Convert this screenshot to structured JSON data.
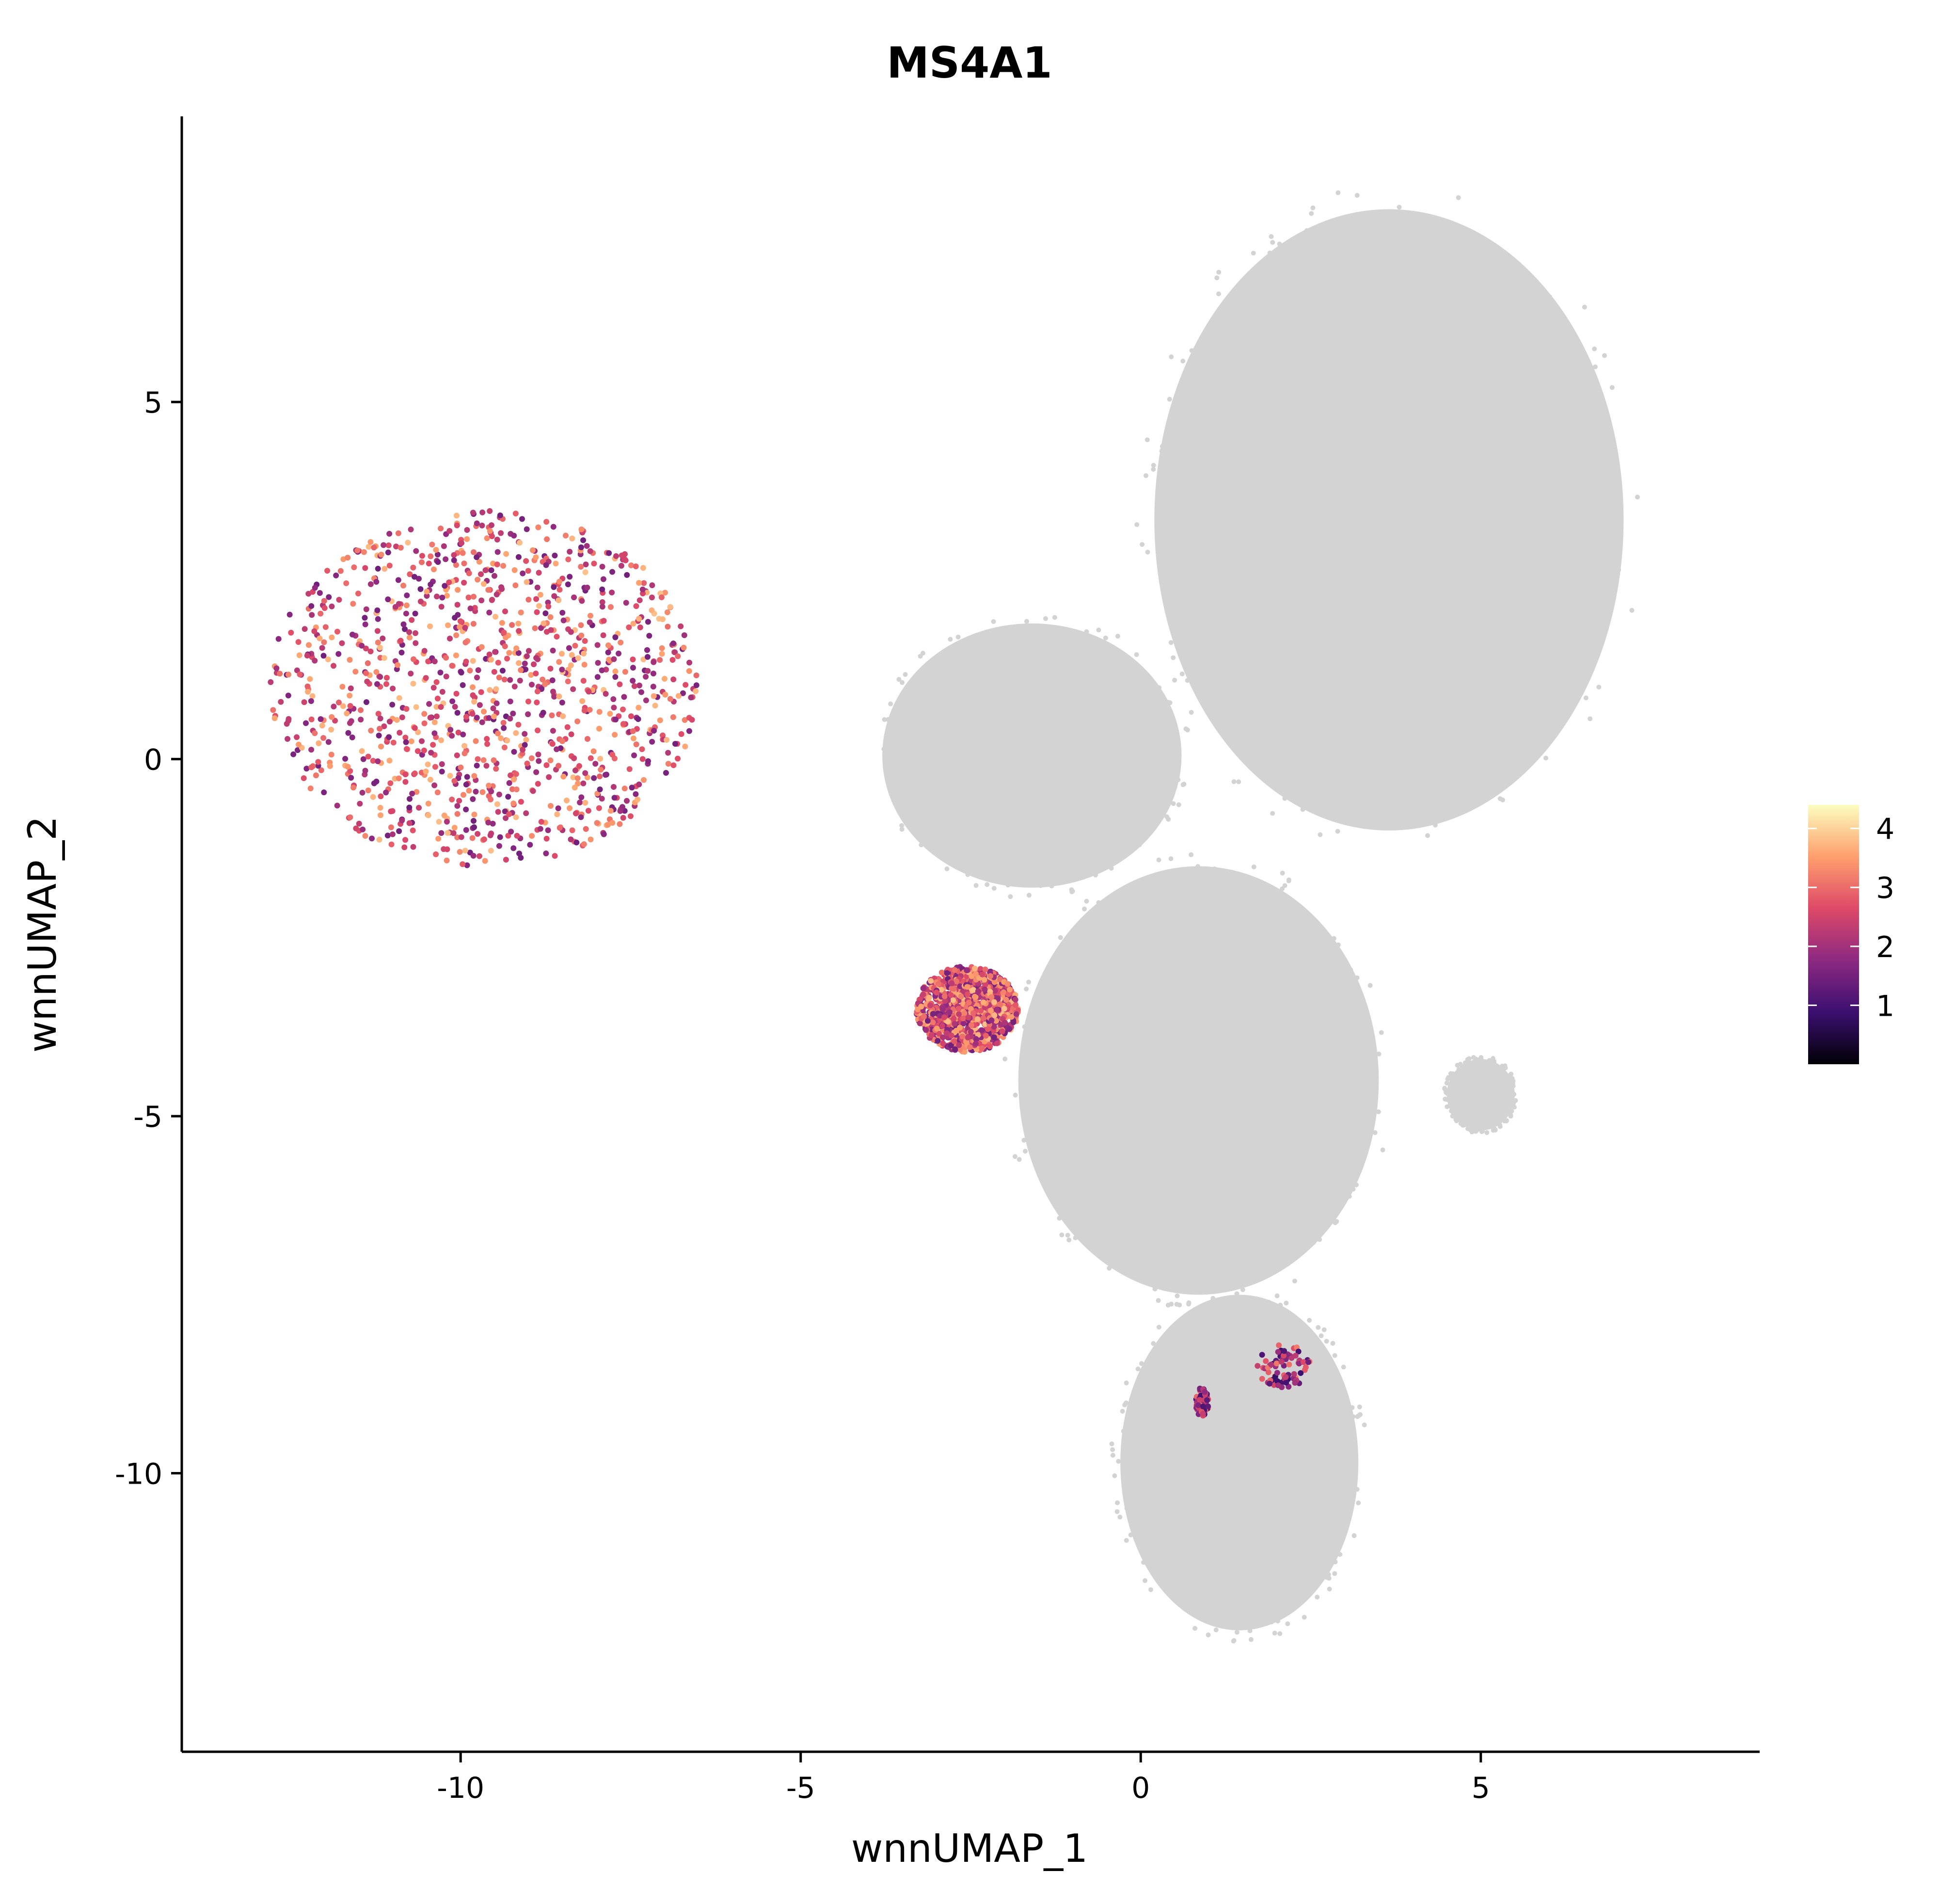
{
  "chart_data": {
    "type": "scatter",
    "title": "MS4A1",
    "xlabel": "wnnUMAP_1",
    "ylabel": "wnnUMAP_2",
    "xlim": [
      -14.1,
      9.1
    ],
    "ylim": [
      -13.9,
      9.0
    ],
    "x_ticks": [
      -10,
      -5,
      0,
      5
    ],
    "y_ticks": [
      5,
      0,
      -5,
      -10
    ],
    "x_tick_labels": [
      "-10",
      "-5",
      "0",
      "5"
    ],
    "y_tick_labels": [
      "5",
      "0",
      "-5",
      "-10"
    ],
    "grid": false,
    "background_color": "#d3d3d3",
    "colorbar": {
      "title": "",
      "ticks": [
        1,
        2,
        3,
        4
      ],
      "tick_labels": [
        "1",
        "2",
        "3",
        "4"
      ],
      "range": [
        0,
        4.4
      ],
      "colors": [
        "#000004",
        "#3b0f70",
        "#8c2981",
        "#de4968",
        "#fe9f6d",
        "#fcfdbf"
      ],
      "placement": "right"
    },
    "clusters_expressing": [
      {
        "name": "",
        "x_range": [
          -12.8,
          -6.5
        ],
        "y_range": [
          -1.5,
          3.5
        ],
        "expression": "high"
      },
      {
        "name": "",
        "x_range": [
          -3.3,
          -1.8
        ],
        "y_range": [
          -4.1,
          -2.9
        ],
        "expression": "high"
      },
      {
        "name": "",
        "x_range": [
          1.7,
          2.5
        ],
        "y_range": [
          -8.8,
          -8.2
        ],
        "expression": "medium"
      },
      {
        "name": "",
        "x_range": [
          0.8,
          1.0
        ],
        "y_range": [
          -9.2,
          -8.8
        ],
        "expression": "medium"
      }
    ],
    "background_regions": [
      {
        "x_range": [
          0.2,
          7.1
        ],
        "y_range": [
          -1.0,
          7.7
        ],
        "description": ""
      },
      {
        "x_range": [
          -3.8,
          0.6
        ],
        "y_range": [
          -1.8,
          1.9
        ],
        "description": ""
      },
      {
        "x_range": [
          -1.8,
          3.5
        ],
        "y_range": [
          -7.5,
          -1.5
        ],
        "description": ""
      },
      {
        "x_range": [
          -0.3,
          3.2
        ],
        "y_range": [
          -12.2,
          -7.5
        ],
        "description": ""
      },
      {
        "x_range": [
          4.5,
          5.5
        ],
        "y_range": [
          -5.2,
          -4.2
        ],
        "description": ""
      }
    ]
  }
}
